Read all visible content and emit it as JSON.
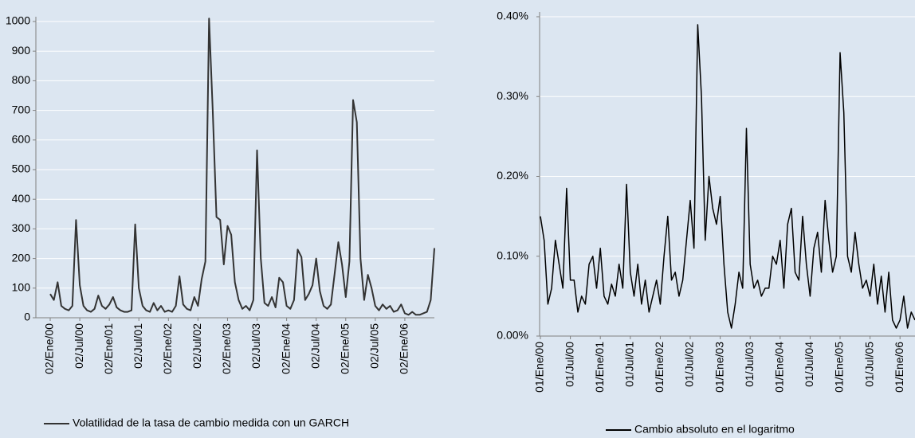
{
  "chart_data": [
    {
      "type": "line",
      "grid": true,
      "categories": [
        "02/Ene/00",
        null,
        null,
        null,
        null,
        null,
        null,
        null,
        "02/Jul/00",
        null,
        null,
        null,
        null,
        null,
        null,
        null,
        "02/Ene/01",
        null,
        null,
        null,
        null,
        null,
        null,
        null,
        "02/Jul/01",
        null,
        null,
        null,
        null,
        null,
        null,
        null,
        "02/Ene/02",
        null,
        null,
        null,
        null,
        null,
        null,
        null,
        "02/Jul/02",
        null,
        null,
        null,
        null,
        null,
        null,
        null,
        "02/Ene/03",
        null,
        null,
        null,
        null,
        null,
        null,
        null,
        "02/Jul/03",
        null,
        null,
        null,
        null,
        null,
        null,
        null,
        "02/Ene/04",
        null,
        null,
        null,
        null,
        null,
        null,
        null,
        "02/Jul/04",
        null,
        null,
        null,
        null,
        null,
        null,
        null,
        "02/Ene/05",
        null,
        null,
        null,
        null,
        null,
        null,
        null,
        "02/Jul/05",
        null,
        null,
        null,
        null,
        null,
        null,
        null,
        "02/Ene/06",
        null,
        null,
        null,
        null,
        null,
        null,
        null,
        null
      ],
      "series": [
        {
          "name": "Volatilidad de la tasa de cambio medida con un GARCH",
          "color": "#333333",
          "values": [
            80,
            60,
            120,
            40,
            30,
            25,
            40,
            330,
            110,
            40,
            25,
            20,
            30,
            75,
            40,
            30,
            45,
            70,
            35,
            25,
            20,
            20,
            25,
            315,
            100,
            40,
            25,
            20,
            50,
            25,
            40,
            20,
            25,
            20,
            40,
            140,
            45,
            30,
            25,
            70,
            40,
            130,
            190,
            1010,
            700,
            340,
            330,
            180,
            310,
            280,
            120,
            60,
            30,
            40,
            25,
            60,
            565,
            200,
            50,
            40,
            70,
            35,
            135,
            120,
            40,
            30,
            60,
            230,
            205,
            60,
            80,
            110,
            200,
            90,
            40,
            30,
            45,
            150,
            255,
            180,
            70,
            190,
            735,
            660,
            200,
            60,
            145,
            100,
            40,
            25,
            45,
            30,
            40,
            20,
            25,
            45,
            15,
            10,
            20,
            10,
            10,
            15,
            20,
            60,
            235
          ]
        }
      ],
      "ylim": [
        0,
        1000
      ],
      "yticks": [
        0,
        100,
        200,
        300,
        400,
        500,
        600,
        700,
        800,
        900,
        1000
      ]
    },
    {
      "type": "line",
      "grid": true,
      "categories": [
        "01/Ene/00",
        null,
        null,
        null,
        null,
        null,
        null,
        null,
        "01/Jul/00",
        null,
        null,
        null,
        null,
        null,
        null,
        null,
        "01/Ene/01",
        null,
        null,
        null,
        null,
        null,
        null,
        null,
        "01/Jul/01",
        null,
        null,
        null,
        null,
        null,
        null,
        null,
        "01/Ene/02",
        null,
        null,
        null,
        null,
        null,
        null,
        null,
        "01/Jul/02",
        null,
        null,
        null,
        null,
        null,
        null,
        null,
        "01/Ene/03",
        null,
        null,
        null,
        null,
        null,
        null,
        null,
        "01/Jul/03",
        null,
        null,
        null,
        null,
        null,
        null,
        null,
        "01/Ene/04",
        null,
        null,
        null,
        null,
        null,
        null,
        null,
        "01/Jul/04",
        null,
        null,
        null,
        null,
        null,
        null,
        null,
        "01/Ene/05",
        null,
        null,
        null,
        null,
        null,
        null,
        null,
        "01/Jul/05",
        null,
        null,
        null,
        null,
        null,
        null,
        null,
        "01/Ene/06",
        null,
        null,
        null,
        null
      ],
      "series": [
        {
          "name": "Cambio absoluto en el logaritmo",
          "color": "#000000",
          "values": [
            0.15,
            0.12,
            0.04,
            0.06,
            0.12,
            0.09,
            0.06,
            0.185,
            0.07,
            0.07,
            0.03,
            0.05,
            0.04,
            0.09,
            0.1,
            0.06,
            0.11,
            0.05,
            0.04,
            0.065,
            0.05,
            0.09,
            0.06,
            0.19,
            0.08,
            0.05,
            0.09,
            0.04,
            0.07,
            0.03,
            0.05,
            0.07,
            0.04,
            0.1,
            0.15,
            0.07,
            0.08,
            0.05,
            0.07,
            0.12,
            0.17,
            0.11,
            0.39,
            0.3,
            0.12,
            0.2,
            0.16,
            0.14,
            0.175,
            0.09,
            0.03,
            0.01,
            0.04,
            0.08,
            0.06,
            0.26,
            0.09,
            0.06,
            0.07,
            0.05,
            0.06,
            0.06,
            0.1,
            0.09,
            0.12,
            0.06,
            0.14,
            0.16,
            0.08,
            0.07,
            0.15,
            0.09,
            0.05,
            0.11,
            0.13,
            0.08,
            0.17,
            0.12,
            0.08,
            0.1,
            0.355,
            0.28,
            0.1,
            0.08,
            0.13,
            0.09,
            0.06,
            0.07,
            0.05,
            0.09,
            0.04,
            0.075,
            0.03,
            0.08,
            0.02,
            0.01,
            0.02,
            0.05,
            0.01,
            0.03,
            0.02
          ]
        }
      ],
      "ylim": [
        0,
        0.4
      ],
      "yticks": [
        {
          "value": 0,
          "label": "0.00%"
        },
        {
          "value": 0.1,
          "label": "0.10%"
        },
        {
          "value": 0.2,
          "label": "0.20%"
        },
        {
          "value": 0.3,
          "label": "0.30%"
        },
        {
          "value": 0.4,
          "label": "0.40%"
        }
      ]
    }
  ]
}
